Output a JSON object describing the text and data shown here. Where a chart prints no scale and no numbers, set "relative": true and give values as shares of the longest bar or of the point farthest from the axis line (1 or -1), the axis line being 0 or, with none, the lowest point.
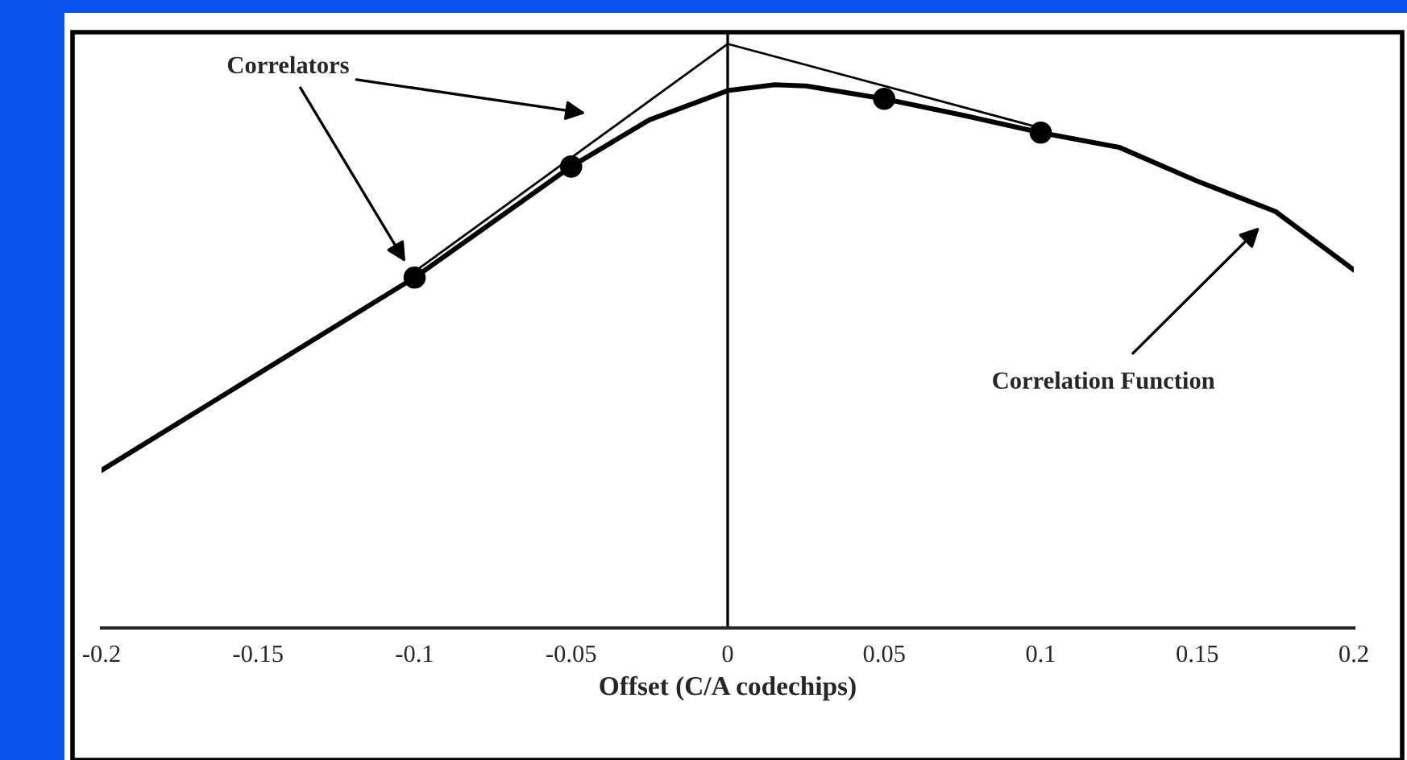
{
  "chart_data": {
    "type": "line",
    "relative": true,
    "xlabel": "Offset (C/A codechips)",
    "xlim": [
      -0.2,
      0.2
    ],
    "xticks": [
      -0.2,
      -0.15,
      -0.1,
      -0.05,
      0,
      0.05,
      0.1,
      0.15,
      0.2
    ],
    "grid": false,
    "legend": false,
    "tick_labels": "x",
    "ref_lines": [
      {
        "axis": "x",
        "value": 0,
        "color": "#000000"
      }
    ],
    "series": [
      {
        "color": "#000000",
        "line_style": "solid",
        "marker": "none",
        "x": [
          -0.2,
          -0.15,
          -0.1,
          -0.05,
          -0.025,
          0,
          0.015,
          0.025,
          0.05,
          0.075,
          0.1,
          0.125,
          0.15,
          0.175,
          0.2
        ],
        "values": [
          0.27,
          0.435,
          0.6,
          0.79,
          0.87,
          0.92,
          0.93,
          0.928,
          0.906,
          0.878,
          0.848,
          0.823,
          0.765,
          0.713,
          0.613
        ]
      },
      {
        "color": "#000000",
        "line_style": "solid",
        "marker": "none",
        "x": [
          -0.1,
          0,
          0.1
        ],
        "values": [
          0.61,
          1.0,
          0.856
        ]
      },
      {
        "type": "scatter",
        "color": "#000000",
        "marker": "circle",
        "x": [
          -0.1,
          -0.05,
          0.05,
          0.1
        ],
        "values": [
          0.6,
          0.79,
          0.906,
          0.848
        ]
      }
    ],
    "annotations": [
      "Correlators",
      "Correlation Function"
    ]
  }
}
